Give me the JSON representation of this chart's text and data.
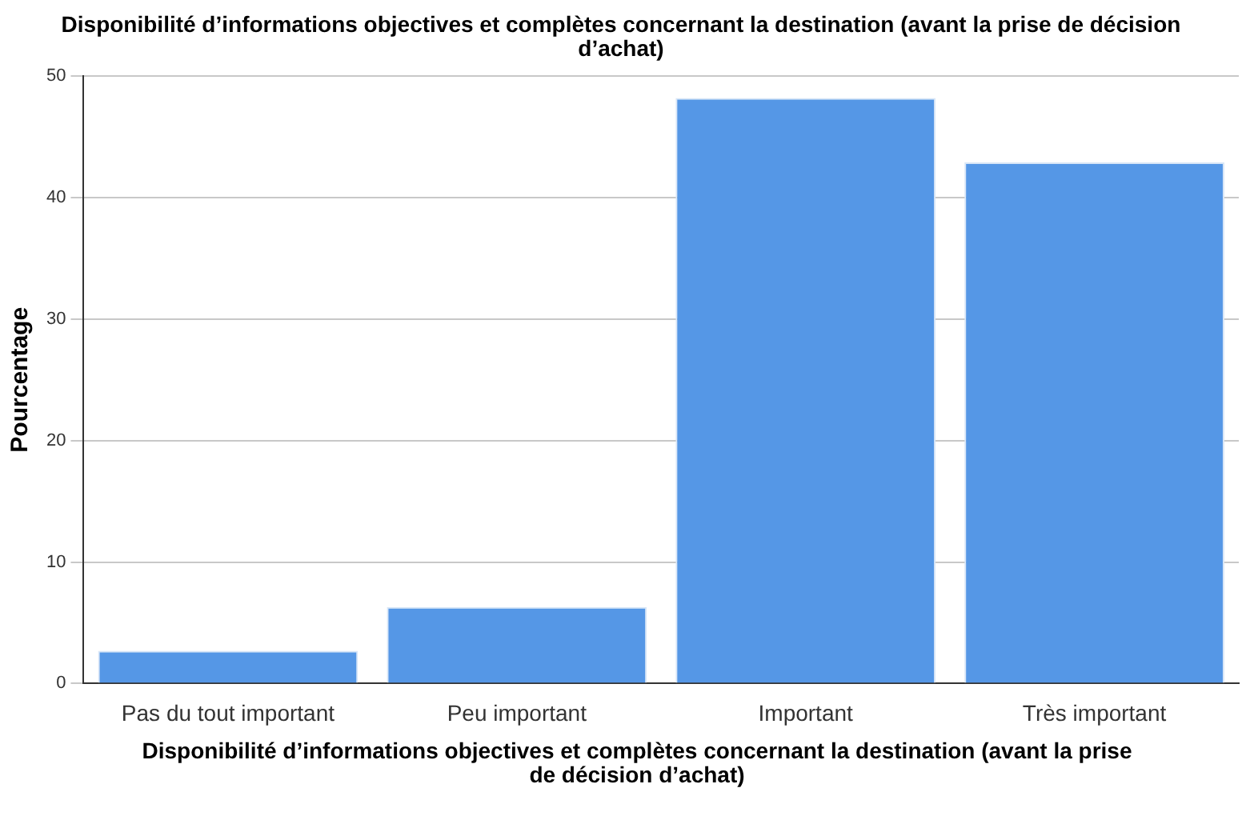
{
  "chart_data": {
    "type": "bar",
    "title": "Disponibilité d’informations objectives et complètes concernant la destination (avant la prise de décision d’achat)",
    "xlabel": "Disponibilité d’informations objectives et complètes concernant la destination (avant la prise de décision d’achat)",
    "ylabel": "Pourcentage",
    "categories": [
      "Pas du tout important",
      "Peu important",
      "Important",
      "Très important"
    ],
    "values": [
      2.7,
      6.3,
      48.2,
      42.9
    ],
    "color": "#5597e6",
    "ylim": [
      0,
      50
    ],
    "yticks": [
      0,
      10,
      20,
      30,
      40,
      50
    ],
    "grid": "y"
  }
}
